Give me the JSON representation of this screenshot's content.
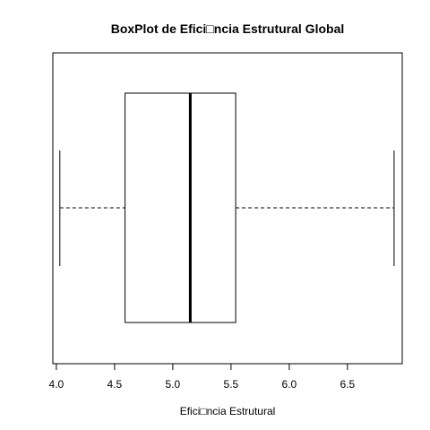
{
  "chart_data": {
    "type": "boxplot",
    "orientation": "horizontal",
    "title": "BoxPlot de Efici□ncia Estrutural Global",
    "xlabel": "Efici□ncia Estrutural",
    "ylabel": "",
    "xlim": [
      3.97,
      6.97
    ],
    "x_ticks": [
      4.0,
      4.5,
      5.0,
      5.5,
      6.0,
      6.5
    ],
    "x_tick_labels": [
      "4.0",
      "4.5",
      "5.0",
      "5.5",
      "6.0",
      "6.5"
    ],
    "box": {
      "whisker_low": 4.03,
      "q1": 4.59,
      "median": 5.15,
      "q3": 5.54,
      "whisker_high": 6.9
    },
    "grid": false,
    "legend": "none"
  }
}
